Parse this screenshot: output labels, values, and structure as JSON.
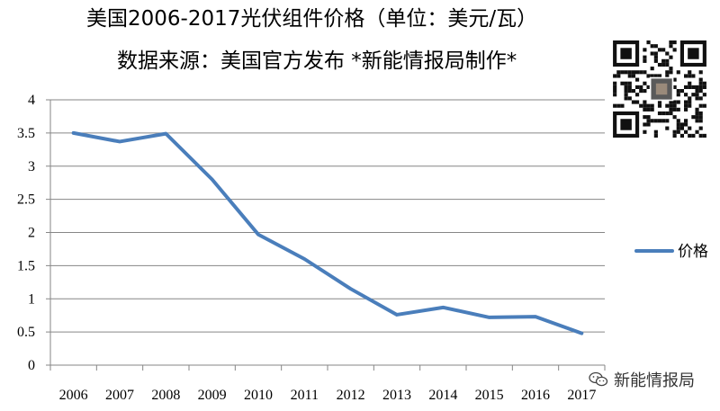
{
  "title": "美国2006-2017光伏组件价格（单位：美元/瓦）",
  "subtitle": "数据来源：美国官方发布  *新能情报局制作*",
  "watermark": "新能情报局",
  "colors": {
    "line": "#4a7ebb",
    "grid": "#868686",
    "axis": "#868686"
  },
  "icons": {
    "qr": "qr-code-icon",
    "watermark": "wechat-icon"
  },
  "chart_data": {
    "type": "line",
    "title": "美国2006-2017光伏组件价格（单位：美元/瓦）",
    "categories": [
      "2006",
      "2007",
      "2008",
      "2009",
      "2010",
      "2011",
      "2012",
      "2013",
      "2014",
      "2015",
      "2016",
      "2017"
    ],
    "series": [
      {
        "name": "价格",
        "values": [
          3.5,
          3.37,
          3.49,
          2.8,
          1.97,
          1.6,
          1.15,
          0.76,
          0.87,
          0.72,
          0.73,
          0.48
        ]
      }
    ],
    "ylim": [
      0,
      4
    ],
    "yticks": [
      "0",
      "0.5",
      "1",
      "1.5",
      "2",
      "2.5",
      "3",
      "3.5",
      "4"
    ],
    "grid": true,
    "legend_position": "right"
  }
}
